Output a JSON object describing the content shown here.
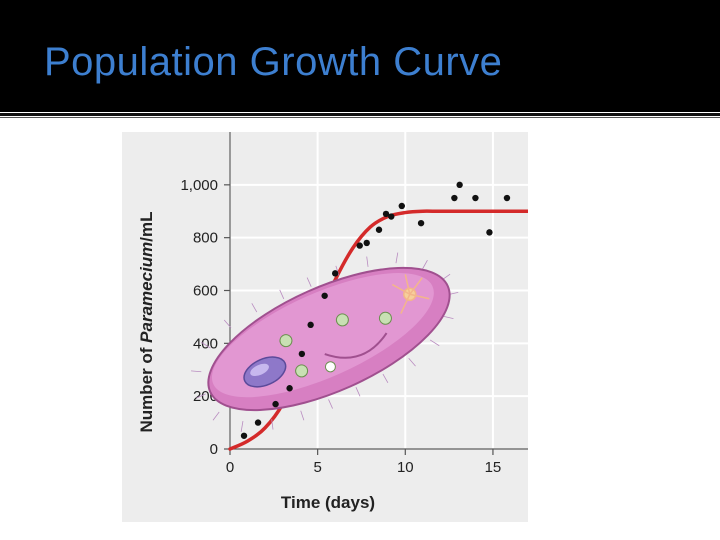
{
  "slide": {
    "title": "Population Growth Curve"
  },
  "chart_data": {
    "type": "scatter",
    "xlabel": "Time (days)",
    "ylabel_prefix": "Number of ",
    "ylabel_italic": "Paramecium",
    "ylabel_suffix": "/mL",
    "xlim": [
      0,
      17
    ],
    "ylim": [
      0,
      1200
    ],
    "xticks": [
      0,
      5,
      10,
      15
    ],
    "yticks": [
      0,
      200,
      400,
      600,
      800,
      1000
    ],
    "ytick_labels": [
      "0",
      "200",
      "400",
      "600",
      "800",
      "1,000"
    ],
    "grid": true,
    "points": [
      {
        "x": 0.8,
        "y": 50
      },
      {
        "x": 1.6,
        "y": 100
      },
      {
        "x": 2.6,
        "y": 170
      },
      {
        "x": 3.4,
        "y": 230
      },
      {
        "x": 4.1,
        "y": 360
      },
      {
        "x": 4.6,
        "y": 470
      },
      {
        "x": 5.4,
        "y": 580
      },
      {
        "x": 6.0,
        "y": 665
      },
      {
        "x": 7.4,
        "y": 770
      },
      {
        "x": 7.8,
        "y": 780
      },
      {
        "x": 8.5,
        "y": 830
      },
      {
        "x": 8.9,
        "y": 890
      },
      {
        "x": 9.2,
        "y": 880
      },
      {
        "x": 9.8,
        "y": 920
      },
      {
        "x": 10.9,
        "y": 855
      },
      {
        "x": 12.8,
        "y": 950
      },
      {
        "x": 13.1,
        "y": 1000
      },
      {
        "x": 14.0,
        "y": 950
      },
      {
        "x": 14.8,
        "y": 820
      },
      {
        "x": 15.8,
        "y": 950
      }
    ],
    "curve": {
      "type": "logistic",
      "carrying_capacity": 900,
      "points": [
        {
          "x": 0,
          "y": 0
        },
        {
          "x": 1,
          "y": 30
        },
        {
          "x": 2,
          "y": 80
        },
        {
          "x": 3,
          "y": 170
        },
        {
          "x": 4,
          "y": 320
        },
        {
          "x": 5,
          "y": 490
        },
        {
          "x": 6,
          "y": 640
        },
        {
          "x": 7,
          "y": 760
        },
        {
          "x": 8,
          "y": 840
        },
        {
          "x": 9,
          "y": 880
        },
        {
          "x": 10,
          "y": 895
        },
        {
          "x": 11,
          "y": 900
        },
        {
          "x": 12,
          "y": 900
        },
        {
          "x": 17,
          "y": 900
        }
      ]
    },
    "colors": {
      "curve": "#d42a2a",
      "points": "#111111",
      "background": "#ededed",
      "grid": "#ffffff",
      "organism_body": "#d77fc2"
    },
    "illustration": "paramecium"
  }
}
